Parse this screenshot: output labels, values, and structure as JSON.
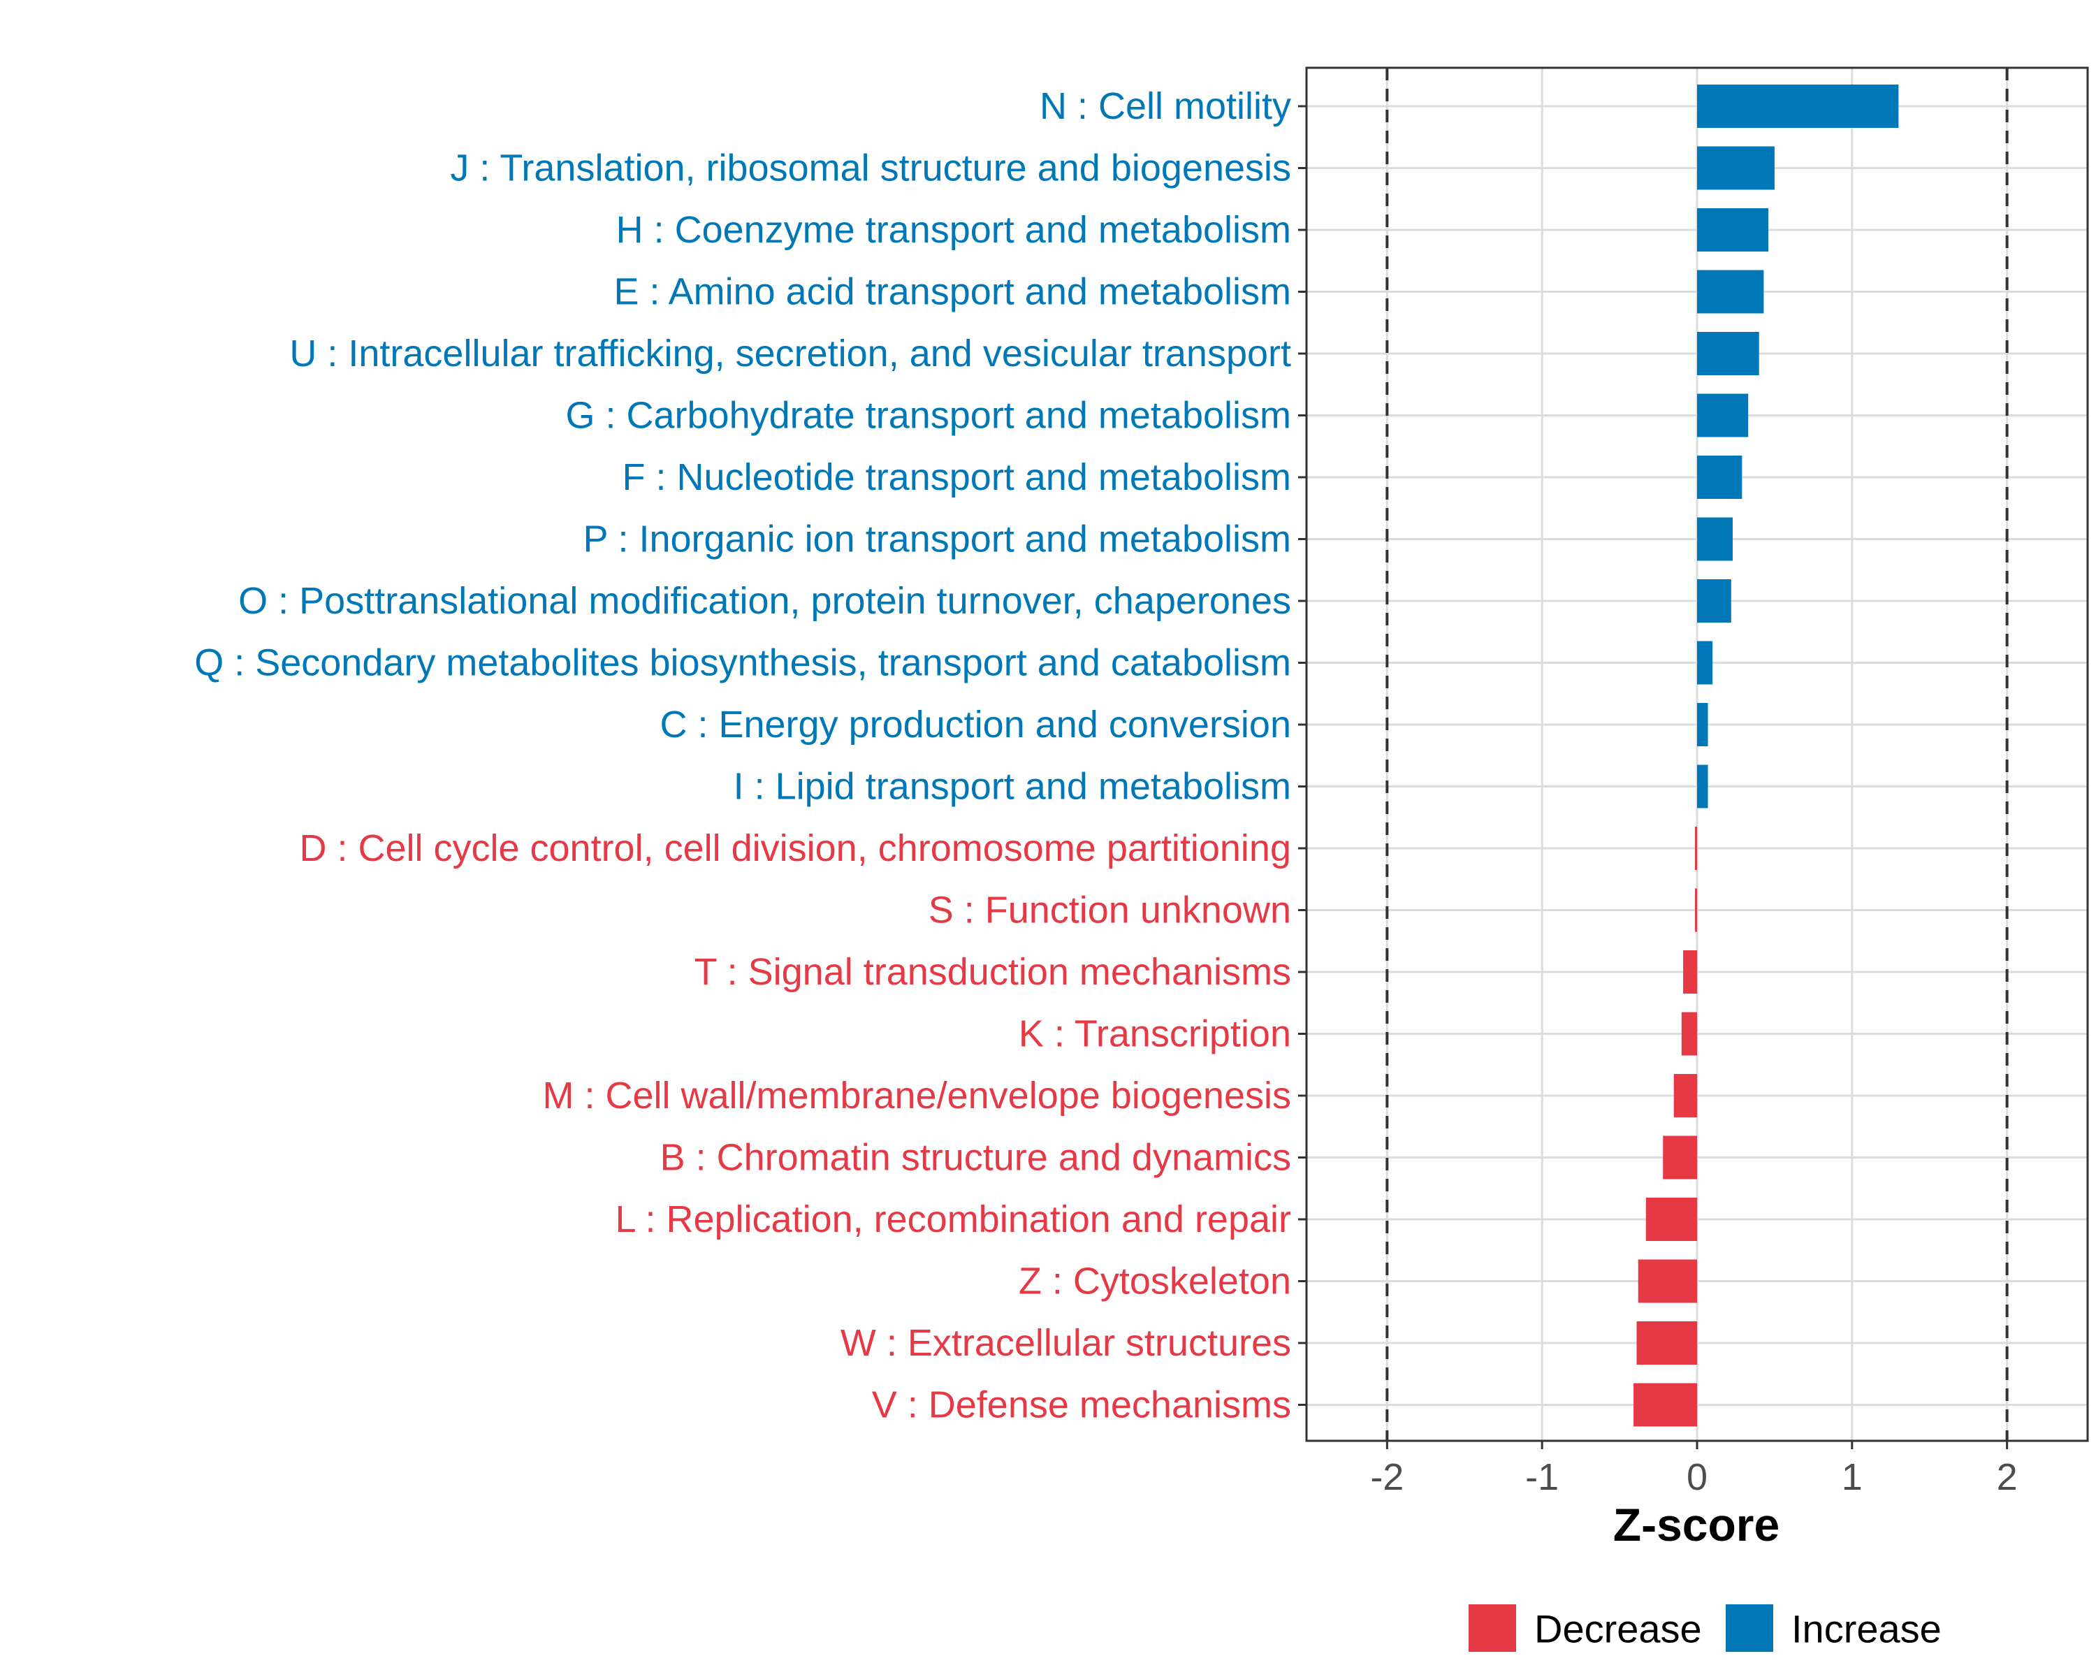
{
  "chart_data": {
    "type": "bar",
    "orientation": "horizontal",
    "categories": [
      "N : Cell motility",
      "J : Translation, ribosomal structure and biogenesis",
      "H : Coenzyme transport and metabolism",
      "E : Amino acid transport and metabolism",
      "U : Intracellular trafficking, secretion, and vesicular transport",
      "G : Carbohydrate transport and metabolism",
      "F : Nucleotide transport and metabolism",
      "P : Inorganic ion transport and metabolism",
      "O : Posttranslational modification, protein turnover, chaperones",
      "Q : Secondary metabolites biosynthesis, transport and catabolism",
      "C : Energy production and conversion",
      "I : Lipid transport and metabolism",
      "D : Cell cycle control, cell division, chromosome partitioning",
      "S : Function unknown",
      "T : Signal transduction mechanisms",
      "K : Transcription",
      "M : Cell wall/membrane/envelope biogenesis",
      "B : Chromatin structure and dynamics",
      "L : Replication, recombination and repair",
      "Z : Cytoskeleton",
      "W : Extracellular structures",
      "V : Defense mechanisms"
    ],
    "values": [
      1.3,
      0.5,
      0.46,
      0.43,
      0.4,
      0.33,
      0.29,
      0.23,
      0.22,
      0.1,
      0.07,
      0.07,
      -0.01,
      -0.01,
      -0.09,
      -0.1,
      -0.15,
      -0.22,
      -0.33,
      -0.38,
      -0.39,
      -0.41
    ],
    "xlabel": "Z-score",
    "ylabel": "",
    "xlim": [
      -2.52,
      2.52
    ],
    "xticks": [
      -2,
      -1,
      0,
      1,
      2
    ],
    "xtick_labels": [
      "-2",
      "-1",
      "0",
      "1",
      "2"
    ],
    "reference_lines": [
      -2,
      2
    ],
    "grid": true,
    "legend": {
      "placement": "bottom",
      "entries": [
        {
          "label": "Decrease",
          "color": "#E63946"
        },
        {
          "label": "Increase",
          "color": "#0077B6"
        }
      ]
    },
    "colors": {
      "increase": "#0077B6",
      "decrease": "#E63946"
    }
  }
}
